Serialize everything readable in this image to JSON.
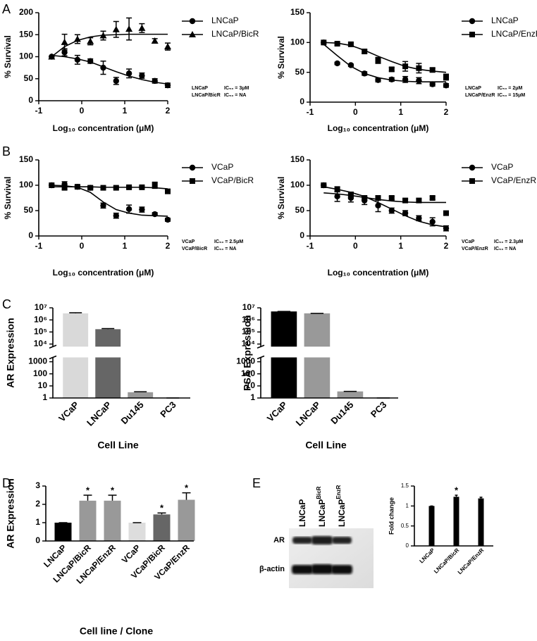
{
  "chart_data": [
    {
      "type": "scatter",
      "panel": "A",
      "xlabel": "Log₁₀ concentration (μM)",
      "ylabel": "% Survival",
      "x": [
        -0.7,
        -0.4,
        -0.1,
        0.2,
        0.5,
        0.8,
        1.1,
        1.4,
        1.7,
        2.0
      ],
      "xlim": [
        -1,
        2
      ],
      "xticks": [
        -1,
        0,
        1,
        2
      ],
      "ylim": [
        0,
        200
      ],
      "yticks": [
        0,
        50,
        100,
        150,
        200
      ],
      "series": [
        {
          "name": "LNCaP",
          "color": "#000000",
          "marker": "circle",
          "values": [
            100,
            110,
            93,
            90,
            75,
            45,
            62,
            57,
            45,
            35
          ],
          "errors": [
            0,
            8,
            10,
            5,
            15,
            8,
            10,
            6,
            5,
            5
          ],
          "fit": [
            103,
            100,
            95,
            88,
            77,
            66,
            56,
            48,
            42,
            38
          ]
        },
        {
          "name": "LNCaP/BicR",
          "color": "#000000",
          "marker": "triangle",
          "values": [
            100,
            133,
            140,
            135,
            148,
            162,
            163,
            165,
            136,
            123
          ],
          "errors": [
            0,
            18,
            10,
            8,
            10,
            18,
            25,
            10,
            5,
            8
          ],
          "fit": [
            100,
            123,
            137,
            145,
            149,
            150,
            151,
            151,
            151,
            151
          ]
        }
      ],
      "annotations": [
        {
          "name": "LNCaP",
          "text": "IC₅₀ = 3μM"
        },
        {
          "name": "LNCaP/BicR",
          "text": "IC₅₀ = NA"
        }
      ]
    },
    {
      "type": "scatter",
      "xlabel": "Log₁₀ concentration (μM)",
      "ylabel": "% Survival",
      "x": [
        -0.7,
        -0.4,
        -0.1,
        0.2,
        0.5,
        0.8,
        1.1,
        1.4,
        1.7,
        2.0
      ],
      "xlim": [
        -1,
        2
      ],
      "xticks": [
        -1,
        0,
        1,
        2
      ],
      "ylim": [
        0,
        150
      ],
      "yticks": [
        0,
        50,
        100,
        150
      ],
      "series": [
        {
          "name": "LNCaP",
          "color": "#000000",
          "marker": "circle",
          "values": [
            100,
            65,
            62,
            48,
            37,
            38,
            38,
            36,
            30,
            28
          ],
          "errors": [
            0,
            2,
            2,
            3,
            3,
            3,
            5,
            5,
            3,
            3
          ],
          "fit": [
            97,
            78,
            60,
            48,
            41,
            37,
            35,
            34,
            34,
            34
          ]
        },
        {
          "name": "LNCaP/EnzR",
          "color": "#000000",
          "marker": "square",
          "values": [
            100,
            98,
            97,
            85,
            70,
            55,
            60,
            57,
            54,
            42
          ],
          "errors": [
            0,
            2,
            2,
            3,
            5,
            3,
            8,
            8,
            3,
            5
          ],
          "fit": [
            100,
            99,
            95,
            87,
            77,
            68,
            60,
            55,
            52,
            50
          ]
        }
      ],
      "annotations": [
        {
          "name": "LNCaP",
          "text": "IC₅₀ = 2μM"
        },
        {
          "name": "LNCaP/EnzR",
          "text": "IC₅₀ = 15μM"
        }
      ]
    },
    {
      "type": "scatter",
      "panel": "B",
      "xlabel": "Log₁₀ concentration (μM)",
      "ylabel": "% Survival",
      "x": [
        -0.7,
        -0.4,
        -0.1,
        0.2,
        0.5,
        0.8,
        1.1,
        1.4,
        1.7,
        2.0
      ],
      "xlim": [
        -1,
        2
      ],
      "xticks": [
        -1,
        0,
        1,
        2
      ],
      "ylim": [
        0,
        150
      ],
      "yticks": [
        0,
        50,
        100,
        150
      ],
      "series": [
        {
          "name": "VCaP",
          "color": "#000000",
          "marker": "circle",
          "values": [
            100,
            102,
            97,
            95,
            60,
            40,
            53,
            52,
            43,
            32
          ],
          "errors": [
            0,
            5,
            3,
            3,
            5,
            5,
            8,
            5,
            3,
            3
          ],
          "fit": [
            100,
            99,
            96,
            86,
            67,
            52,
            45,
            41,
            40,
            39
          ]
        },
        {
          "name": "VCaP/BicR",
          "color": "#000000",
          "marker": "square",
          "values": [
            100,
            95,
            97,
            95,
            95,
            95,
            96,
            96,
            100,
            88
          ],
          "errors": [
            0,
            3,
            2,
            2,
            2,
            2,
            2,
            2,
            6,
            2
          ],
          "fit": [
            97,
            97,
            97,
            97,
            96,
            96,
            96,
            96,
            95,
            93
          ]
        }
      ],
      "annotations": [
        {
          "name": "VCaP",
          "text": "IC₅₀ = 2.5μM"
        },
        {
          "name": "VCaP/BicR",
          "text": "IC₅₀ = NA"
        }
      ]
    },
    {
      "type": "scatter",
      "xlabel": "Log₁₀ concentration (μM)",
      "ylabel": "% Survival",
      "x": [
        -0.7,
        -0.4,
        -0.1,
        0.2,
        0.5,
        0.8,
        1.1,
        1.4,
        1.7,
        2.0
      ],
      "xlim": [
        -1,
        2
      ],
      "xticks": [
        -1,
        0,
        1,
        2
      ],
      "ylim": [
        0,
        150
      ],
      "yticks": [
        0,
        50,
        100,
        150
      ],
      "series": [
        {
          "name": "VCaP",
          "color": "#000000",
          "marker": "circle",
          "values": [
            100,
            78,
            75,
            70,
            60,
            50,
            45,
            35,
            28,
            15
          ],
          "errors": [
            0,
            10,
            8,
            8,
            12,
            5,
            5,
            5,
            8,
            5
          ],
          "fit": [
            97,
            92,
            86,
            78,
            66,
            53,
            40,
            29,
            22,
            18
          ]
        },
        {
          "name": "VCaP/EnzR",
          "color": "#000000",
          "marker": "square",
          "values": [
            100,
            92,
            82,
            75,
            75,
            75,
            70,
            70,
            75,
            45
          ],
          "errors": [
            0,
            5,
            3,
            3,
            3,
            3,
            3,
            3,
            3,
            3
          ],
          "fit": [
            85,
            83,
            80,
            76,
            72,
            69,
            67,
            66,
            66,
            66
          ]
        }
      ],
      "annotations": [
        {
          "name": "VCaP",
          "text": "IC₅₀ = 2.3μM"
        },
        {
          "name": "VCaP/EnzR",
          "text": "IC₅₀ = NA"
        }
      ]
    },
    {
      "type": "bar",
      "panel": "C",
      "xlabel": "Cell Line",
      "ylabel": "AR Expression",
      "log": true,
      "categories": [
        "VCaP",
        "LNCaP",
        "Du145",
        "PC3"
      ],
      "values": [
        3500000,
        170000,
        3,
        1
      ],
      "errors": [
        400000,
        20000,
        0.3,
        0
      ],
      "colors": [
        "#d9d9d9",
        "#666666",
        "#999999",
        "#999999"
      ],
      "ylim": [
        1,
        10000000
      ],
      "ybreak": [
        2000,
        7000
      ],
      "yticks": [
        1,
        10,
        100,
        1000,
        {
          "value": 10000,
          "label": "10⁴"
        },
        {
          "value": 100000,
          "label": "10⁵"
        },
        {
          "value": 1000000,
          "label": "10⁶"
        },
        {
          "value": 10000000,
          "label": "10⁷"
        }
      ]
    },
    {
      "type": "bar",
      "xlabel": "Cell Line",
      "ylabel": "PSA Expression",
      "log": true,
      "categories": [
        "VCaP",
        "LNCaP",
        "Du145",
        "PC3"
      ],
      "values": [
        5000000,
        3500000,
        3.5,
        1
      ],
      "errors": [
        0,
        0,
        0,
        0
      ],
      "colors": [
        "#000000",
        "#999999",
        "#999999",
        "#999999"
      ],
      "ylim": [
        1,
        10000000
      ],
      "ybreak": [
        2000,
        7000
      ],
      "yticks": [
        1,
        10,
        100,
        1000,
        {
          "value": 10000,
          "label": "10⁴"
        },
        {
          "value": 100000,
          "label": "10⁵"
        },
        {
          "value": 1000000,
          "label": "10⁶"
        },
        {
          "value": 10000000,
          "label": "10⁷"
        }
      ]
    },
    {
      "type": "bar",
      "panel": "D",
      "xlabel": "Cell line / Clone",
      "ylabel": "AR Expression",
      "categories": [
        "LNCaP",
        "LNCaP/BicR",
        "LNCaP/EnzR",
        "VCaP",
        "VCaP/BicR",
        "VCaP/EnzR"
      ],
      "values": [
        1,
        2.2,
        2.2,
        1,
        1.45,
        2.25
      ],
      "errors": [
        0,
        0.3,
        0.3,
        0,
        0.08,
        0.38
      ],
      "significance": [
        null,
        "*",
        "*",
        null,
        "*",
        "*"
      ],
      "colors": [
        "#000000",
        "#999999",
        "#999999",
        "#dddddd",
        "#666666",
        "#999999"
      ],
      "ylim": [
        0,
        3
      ],
      "yticks": [
        0,
        1,
        2,
        3
      ]
    },
    {
      "type": "bar",
      "panel": "E",
      "ylabel": "Fold change",
      "categories": [
        "LNCaP",
        "LNCaP/BicR",
        "LNCaP/EnzR"
      ],
      "values": [
        1,
        1.23,
        1.19
      ],
      "errors": [
        0,
        0.04,
        0.03
      ],
      "significance": [
        null,
        "*",
        null
      ],
      "colors": [
        "#000000",
        "#000000",
        "#000000"
      ],
      "ylim": [
        0,
        1.5
      ],
      "yticks": [
        0,
        0.5,
        1,
        1.5
      ]
    }
  ],
  "blot": {
    "lanes": [
      {
        "name": "LNCaP"
      },
      {
        "name": "LNCaP",
        "sup": "BicR"
      },
      {
        "name": "LNCaP",
        "sup": "EnzR"
      }
    ],
    "rows": [
      "AR",
      "β-actin"
    ]
  }
}
